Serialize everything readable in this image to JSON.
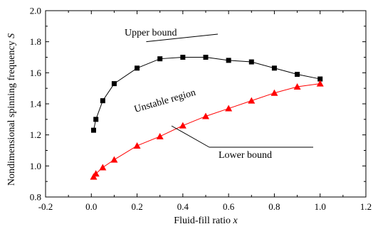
{
  "chart_data": {
    "type": "line",
    "xlabel": "Fluid-fill ratio x",
    "xlabel_parts": {
      "text": "Fluid-fill ratio ",
      "var": "x"
    },
    "ylabel": "Nondimensional spinning frequency S",
    "ylabel_parts": {
      "text": "Nondimensional spinning frequency ",
      "var": "S"
    },
    "xlim": [
      -0.2,
      1.2
    ],
    "ylim": [
      0.8,
      2.0
    ],
    "xticks": [
      -0.2,
      0.0,
      0.2,
      0.4,
      0.6,
      0.8,
      1.0,
      1.2
    ],
    "yticks": [
      0.8,
      1.0,
      1.2,
      1.4,
      1.6,
      1.8,
      2.0
    ],
    "xtick_labels": [
      "-0.2",
      "0.0",
      "0.2",
      "0.4",
      "0.6",
      "0.8",
      "1.0",
      "1.2"
    ],
    "ytick_labels": [
      "0.8",
      "1.0",
      "1.2",
      "1.4",
      "1.6",
      "1.8",
      "2.0"
    ],
    "grid": false,
    "series": [
      {
        "name": "Upper bound",
        "color": "#000000",
        "marker": "square",
        "x": [
          0.01,
          0.02,
          0.05,
          0.1,
          0.2,
          0.3,
          0.4,
          0.5,
          0.6,
          0.7,
          0.8,
          0.9,
          1.0
        ],
        "y": [
          1.23,
          1.3,
          1.42,
          1.53,
          1.63,
          1.69,
          1.7,
          1.7,
          1.68,
          1.67,
          1.63,
          1.59,
          1.56
        ]
      },
      {
        "name": "Lower bound",
        "color": "#ff0000",
        "marker": "triangle",
        "x": [
          0.01,
          0.02,
          0.05,
          0.1,
          0.2,
          0.3,
          0.4,
          0.5,
          0.6,
          0.7,
          0.8,
          0.9,
          1.0
        ],
        "y": [
          0.93,
          0.95,
          0.99,
          1.04,
          1.13,
          1.19,
          1.26,
          1.32,
          1.37,
          1.42,
          1.47,
          1.51,
          1.53
        ]
      }
    ],
    "annotations": [
      {
        "id": "upper",
        "text": "Upper bound",
        "target": [
          0.38,
          1.8
        ]
      },
      {
        "id": "lower",
        "text": "Lower bound",
        "target": [
          0.44,
          1.12
        ]
      },
      {
        "id": "region",
        "text": "Unstable region",
        "at": [
          0.28,
          1.43
        ]
      }
    ]
  }
}
